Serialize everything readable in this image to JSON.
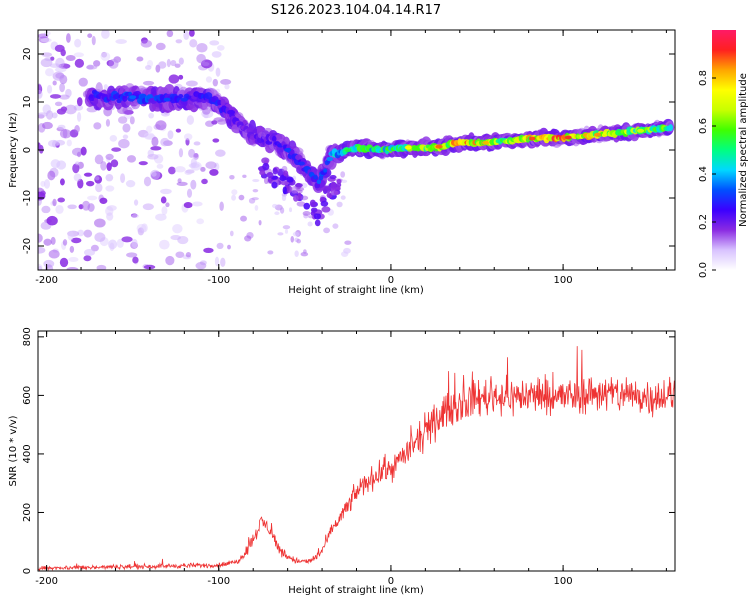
{
  "title": "S126.2023.104.04.14.R17",
  "chart_data": [
    {
      "type": "heatmap",
      "title": "",
      "xlabel": "Height of straight line (km)",
      "ylabel": "Frequency (Hz)",
      "xlim": [
        -205,
        165
      ],
      "ylim": [
        -25,
        25
      ],
      "xticks": [
        -200,
        -100,
        0,
        100
      ],
      "xtick_labels": [
        "-200",
        "-100",
        "0",
        "100"
      ],
      "yticks": [
        -20,
        -10,
        0,
        10,
        20
      ],
      "ytick_labels": [
        "-20",
        "-10",
        "0",
        "10",
        "20"
      ],
      "colorbar": {
        "label": "Normalized spectral amplitude",
        "range": [
          0,
          1
        ],
        "ticks": [
          0.0,
          0.2,
          0.4,
          0.6,
          0.8
        ],
        "tick_labels": [
          "0.0",
          "0.2",
          "0.4",
          "0.6",
          "0.8"
        ],
        "colormap": [
          "#ffffff",
          "#d8c2ff",
          "#8a2be2",
          "#3b00ff",
          "#0050ff",
          "#00d8ff",
          "#00ff80",
          "#40ff00",
          "#c8ff00",
          "#ffff00",
          "#ffa500",
          "#ff2020",
          "#ff1a66"
        ]
      },
      "ridge": [
        {
          "x": -170,
          "y": 11,
          "amp": 0.25
        },
        {
          "x": -160,
          "y": 11,
          "amp": 0.3
        },
        {
          "x": -150,
          "y": 11,
          "amp": 0.3
        },
        {
          "x": -140,
          "y": 11,
          "amp": 0.3
        },
        {
          "x": -130,
          "y": 10.5,
          "amp": 0.28
        },
        {
          "x": -120,
          "y": 10.5,
          "amp": 0.25
        },
        {
          "x": -110,
          "y": 11,
          "amp": 0.25
        },
        {
          "x": -100,
          "y": 10,
          "amp": 0.25
        },
        {
          "x": -90,
          "y": 6,
          "amp": 0.2
        },
        {
          "x": -80,
          "y": 3,
          "amp": 0.2
        },
        {
          "x": -70,
          "y": 2,
          "amp": 0.2
        },
        {
          "x": -60,
          "y": 0,
          "amp": 0.25
        },
        {
          "x": -50,
          "y": -3.5,
          "amp": 0.25
        },
        {
          "x": -42,
          "y": -7,
          "amp": 0.3
        },
        {
          "x": -35,
          "y": -1,
          "amp": 0.35
        },
        {
          "x": -20,
          "y": 0.5,
          "amp": 0.5
        },
        {
          "x": -5,
          "y": 0,
          "amp": 0.5
        },
        {
          "x": 10,
          "y": 0.5,
          "amp": 0.55
        },
        {
          "x": 25,
          "y": 0.5,
          "amp": 0.7
        },
        {
          "x": 40,
          "y": 1.5,
          "amp": 0.75
        },
        {
          "x": 55,
          "y": 1.5,
          "amp": 0.75
        },
        {
          "x": 70,
          "y": 2,
          "amp": 0.6
        },
        {
          "x": 85,
          "y": 2.5,
          "amp": 0.8
        },
        {
          "x": 100,
          "y": 2.5,
          "amp": 0.8
        },
        {
          "x": 115,
          "y": 3,
          "amp": 0.7
        },
        {
          "x": 130,
          "y": 3.5,
          "amp": 0.65
        },
        {
          "x": 145,
          "y": 4,
          "amp": 0.6
        },
        {
          "x": 160,
          "y": 4.5,
          "amp": 0.55
        }
      ]
    },
    {
      "type": "line",
      "title": "",
      "xlabel": "Height of straight line (km)",
      "ylabel": "SNR (10 * v/v)",
      "xlim": [
        -205,
        165
      ],
      "ylim": [
        0,
        820
      ],
      "xticks": [
        -200,
        -100,
        0,
        100
      ],
      "xtick_labels": [
        "-200",
        "-100",
        "0",
        "100"
      ],
      "yticks": [
        0,
        200,
        400,
        600,
        800
      ],
      "ytick_labels": [
        "0",
        "200",
        "400",
        "600",
        "800"
      ],
      "series": [
        {
          "name": "SNR",
          "color": "#ee3333",
          "x": [
            -205,
            -180,
            -150,
            -120,
            -100,
            -90,
            -85,
            -80,
            -75,
            -70,
            -65,
            -60,
            -55,
            -50,
            -45,
            -40,
            -35,
            -30,
            -25,
            -20,
            -15,
            -10,
            -5,
            0,
            5,
            10,
            15,
            20,
            25,
            30,
            40,
            50,
            60,
            70,
            80,
            90,
            100,
            110,
            120,
            130,
            140,
            150,
            160,
            165
          ],
          "y": [
            10,
            12,
            15,
            18,
            20,
            30,
            60,
            110,
            170,
            140,
            75,
            50,
            35,
            30,
            40,
            70,
            130,
            180,
            220,
            270,
            300,
            320,
            340,
            350,
            380,
            410,
            440,
            470,
            500,
            540,
            570,
            590,
            600,
            595,
            600,
            600,
            595,
            600,
            610,
            605,
            600,
            595,
            600,
            590
          ]
        }
      ]
    }
  ]
}
